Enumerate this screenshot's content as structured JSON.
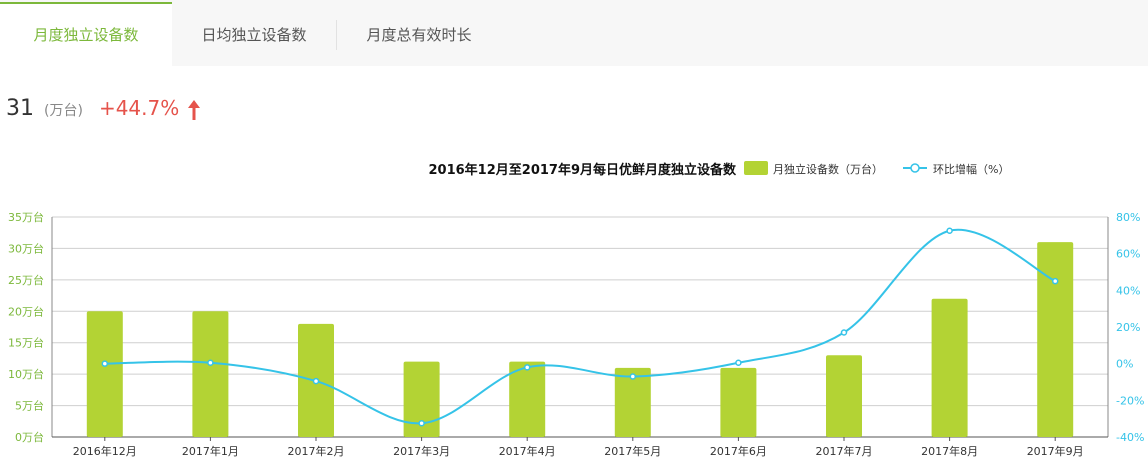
{
  "tabs": [
    {
      "label": "月度独立设备数",
      "active": true
    },
    {
      "label": "日均独立设备数",
      "active": false
    },
    {
      "label": "月度总有效时长",
      "active": false
    }
  ],
  "kpi": {
    "value": "31",
    "unit": "(万台)",
    "change": "+44.7%",
    "arrow_icon": "up-arrow-icon"
  },
  "colors": {
    "accent": "#7cb83b",
    "bar": "#b3d334",
    "line": "#35c3e8",
    "change": "#e5534b",
    "left_axis_label": "#7cb83b",
    "right_axis_label": "#35c3e8"
  },
  "chart_data": {
    "type": "bar",
    "title": "2016年12月至2017年9月每日优鲜月度独立设备数",
    "categories": [
      "2016年12月",
      "2017年1月",
      "2017年2月",
      "2017年3月",
      "2017年4月",
      "2017年5月",
      "2017年6月",
      "2017年7月",
      "2017年8月",
      "2017年9月"
    ],
    "series": [
      {
        "name": "月独立设备数（万台）",
        "type": "bar",
        "axis": "left",
        "values": [
          20,
          20,
          18,
          12,
          12,
          11,
          11,
          13,
          22,
          31
        ]
      },
      {
        "name": "环比增幅（%）",
        "type": "line",
        "axis": "right",
        "values": [
          0,
          0.5,
          -9.5,
          -32.5,
          -2,
          -7,
          0.5,
          17,
          72.5,
          45
        ]
      }
    ],
    "left_axis": {
      "min": 0,
      "max": 35,
      "step": 5,
      "labels": [
        "0万台",
        "5万台",
        "10万台",
        "15万台",
        "20万台",
        "25万台",
        "30万台",
        "35万台"
      ]
    },
    "right_axis": {
      "min": -40,
      "max": 80,
      "step": 20,
      "labels": [
        "-40%",
        "-20%",
        "0%",
        "20%",
        "40%",
        "60%",
        "80%"
      ]
    },
    "grid": true,
    "legend_position": "top-right"
  }
}
